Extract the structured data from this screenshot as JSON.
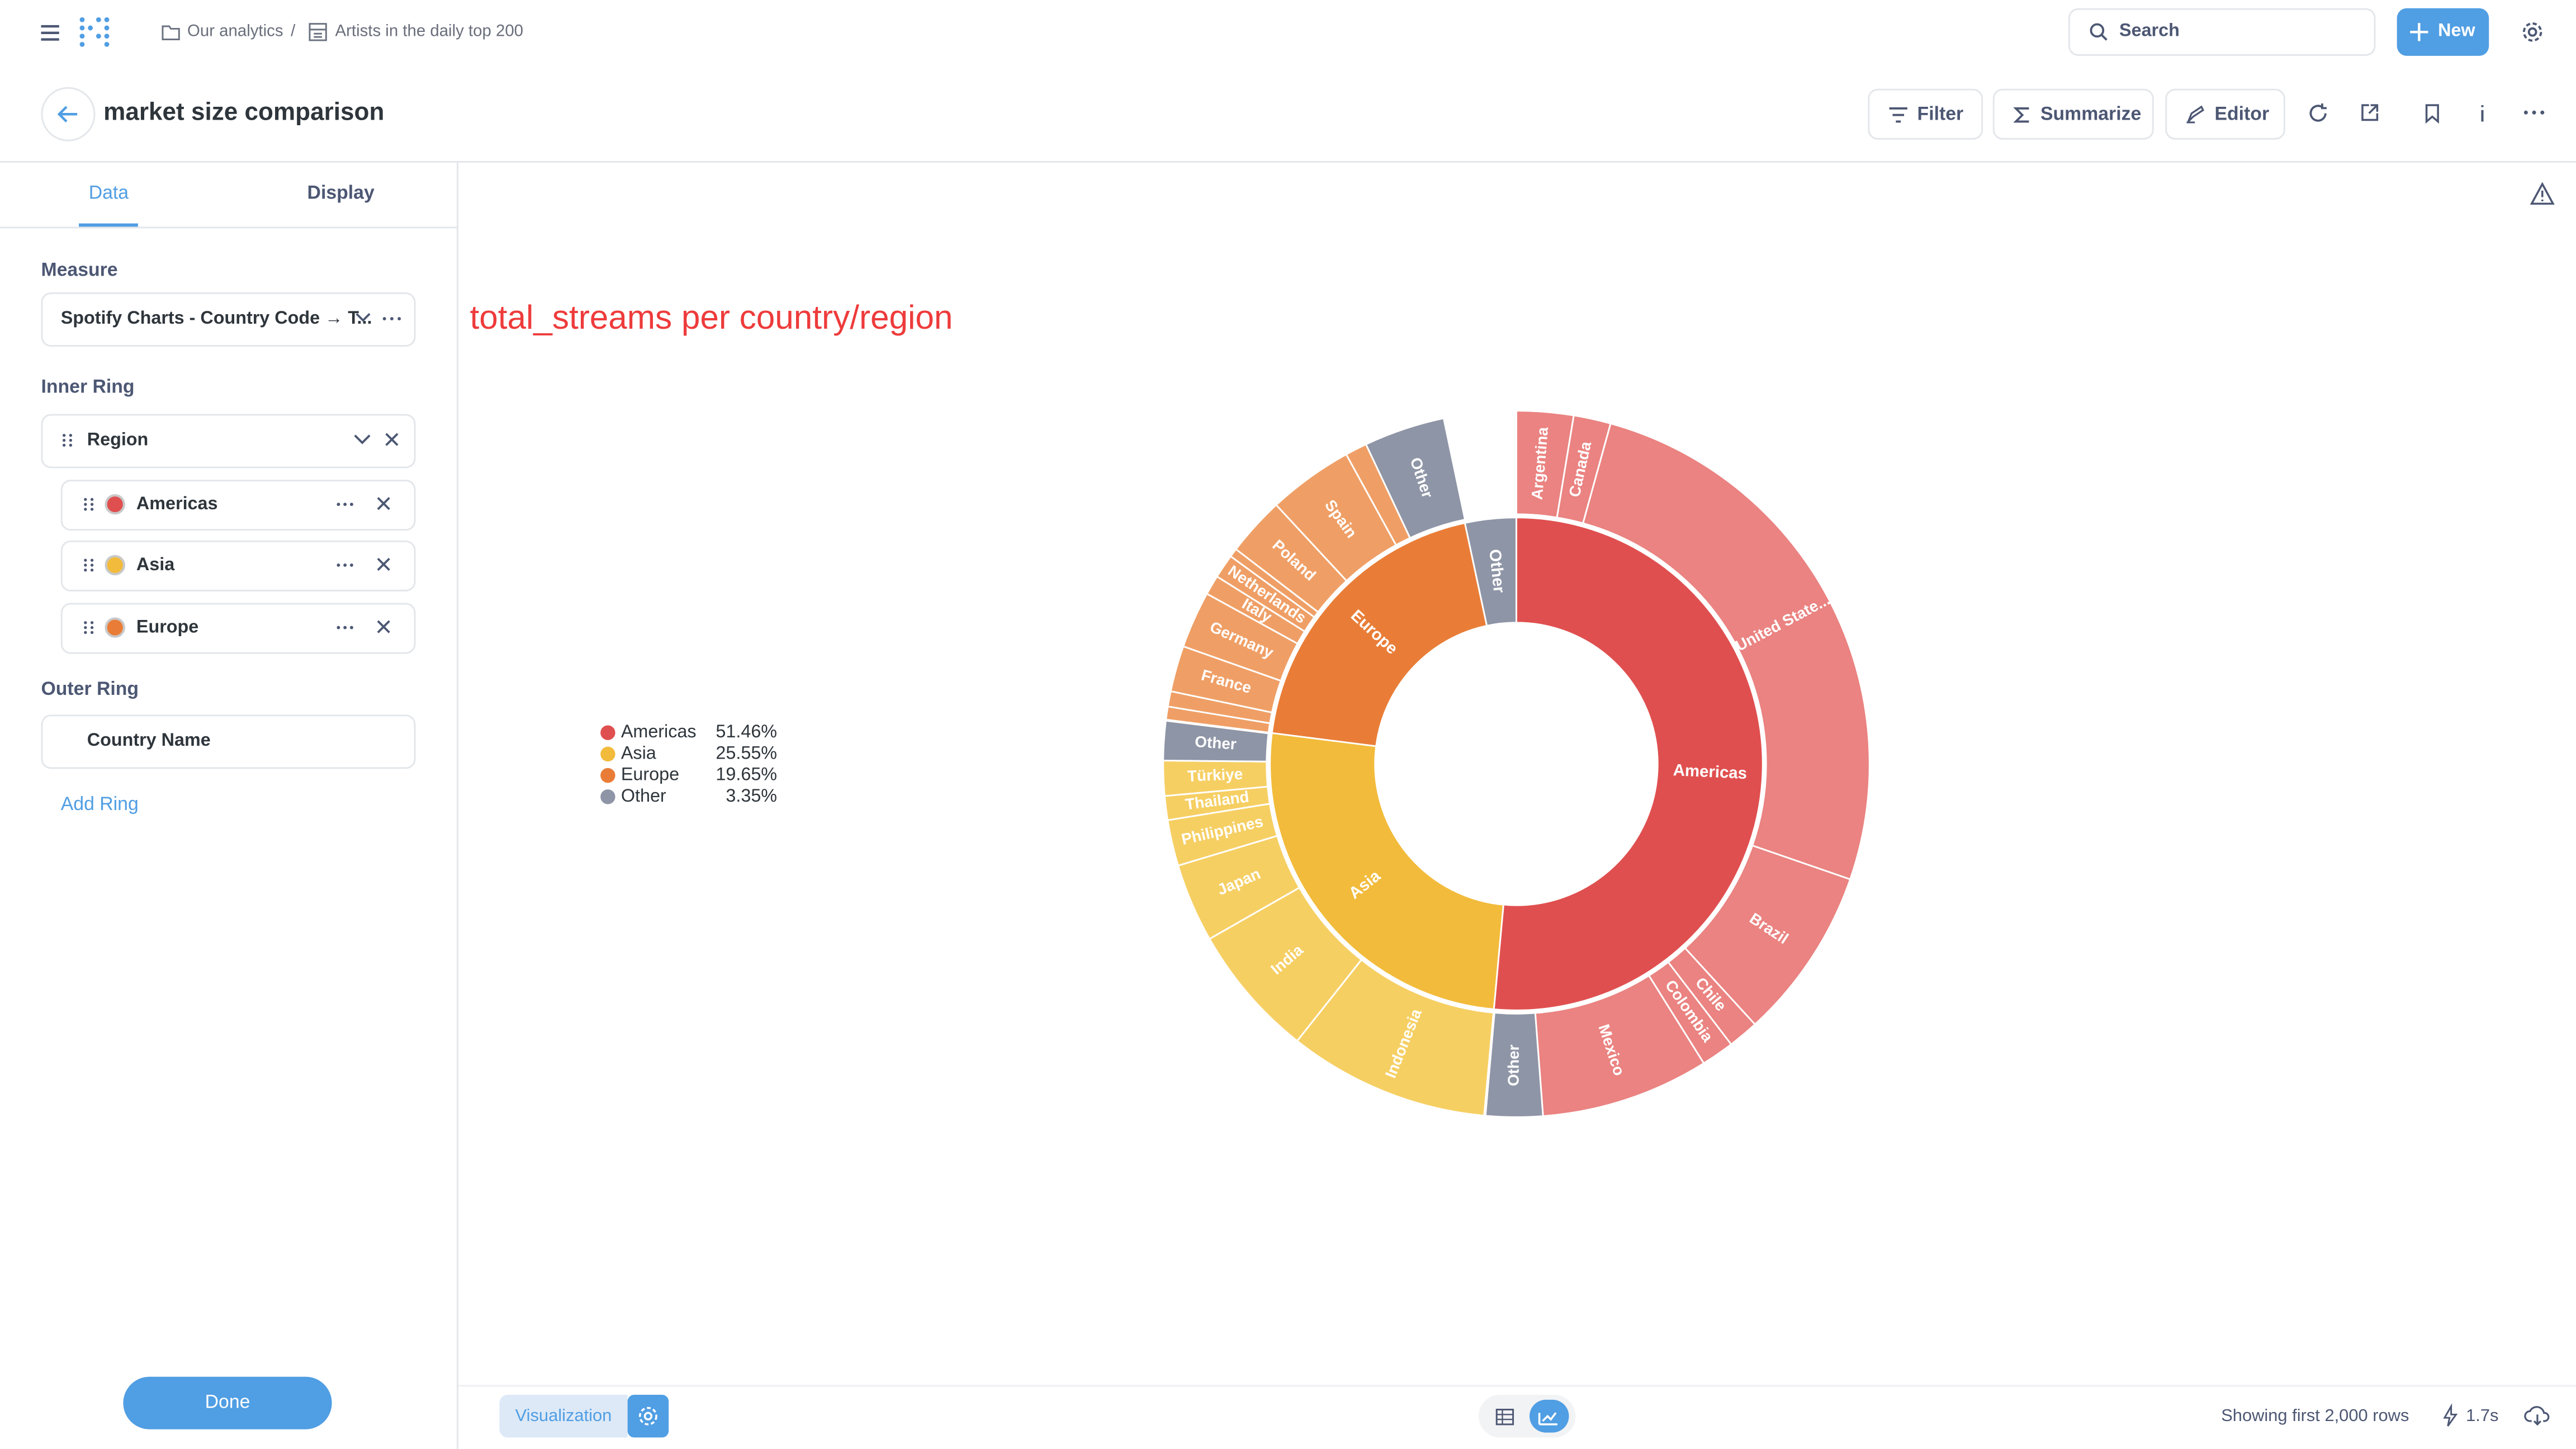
{
  "header": {
    "breadcrumb": [
      "Our analytics",
      "/",
      "Artists in the daily top 200"
    ],
    "search": "Search",
    "new_button": "New"
  },
  "question": {
    "title": "market size comparison",
    "actions": [
      "Filter",
      "Summarize",
      "Editor"
    ]
  },
  "sidebar": {
    "tabs": [
      "Data",
      "Display"
    ],
    "measure_label": "Measure",
    "measure_value": "Spotify Charts - Country Code → T...",
    "inner_ring_label": "Inner Ring",
    "inner_ring_field": "Region",
    "inner_ring_items": [
      "Americas",
      "Asia",
      "Europe"
    ],
    "outer_ring_label": "Outer Ring",
    "outer_ring_field": "Country Name",
    "add_ring": "Add Ring",
    "done": "Done"
  },
  "footer": {
    "visualization": "Visualization",
    "rows": "Showing first 2,000 rows",
    "time": "1.7s"
  },
  "chart_data": {
    "type": "sunburst",
    "title": "total_streams per country/region",
    "inner": {
      "categories": [
        "Americas",
        "Asia",
        "Europe",
        "Other"
      ],
      "values": [
        51.46,
        25.55,
        19.65,
        3.35
      ],
      "value_labels": [
        "51.46%",
        "25.55%",
        "19.65%",
        "3.35%"
      ],
      "colors": [
        "#e04f4f",
        "#f2bb3b",
        "#e97d37",
        "#8e95a6"
      ]
    },
    "outer": [
      {
        "categories": [
          "Argentina",
          "Canada",
          "United State...",
          "Brazil",
          "Chile",
          "Colombia",
          "Mexico",
          "Other"
        ],
        "values": [
          2.6,
          1.7,
          26.0,
          7.9,
          1.4,
          1.5,
          7.7,
          2.6
        ],
        "colors": [
          "#ea8381",
          "#ea8381",
          "#ea8381",
          "#ea8381",
          "#ea8381",
          "#ea8381",
          "#ea8381",
          "#8e95a6"
        ]
      },
      {
        "categories": [
          "Indonesia",
          "India",
          "Japan",
          "Philippines",
          "Thailand",
          "Türkiye",
          "Other"
        ],
        "values": [
          9.2,
          6.1,
          3.6,
          2.1,
          1.1,
          1.6,
          1.8
        ],
        "colors": [
          "#f6cf63",
          "#f6cf63",
          "#f6cf63",
          "#f6cf63",
          "#f6cf63",
          "#f6cf63",
          "#8e95a6"
        ]
      },
      {
        "categories": [
          null,
          null,
          "France",
          "Germany",
          "Italy",
          "Netherlands",
          null,
          "Poland",
          "Spain",
          null,
          "Other"
        ],
        "values": [
          0.6,
          0.7,
          2.1,
          2.6,
          0.9,
          1.1,
          0.4,
          2.7,
          3.9,
          1.0,
          3.7
        ],
        "colors": [
          "#ef9f66",
          "#ef9f66",
          "#ef9f66",
          "#ef9f66",
          "#ef9f66",
          "#ef9f66",
          "#ef9f66",
          "#ef9f66",
          "#ef9f66",
          "#ef9f66",
          "#8e95a6"
        ]
      }
    ],
    "legend": "left"
  }
}
